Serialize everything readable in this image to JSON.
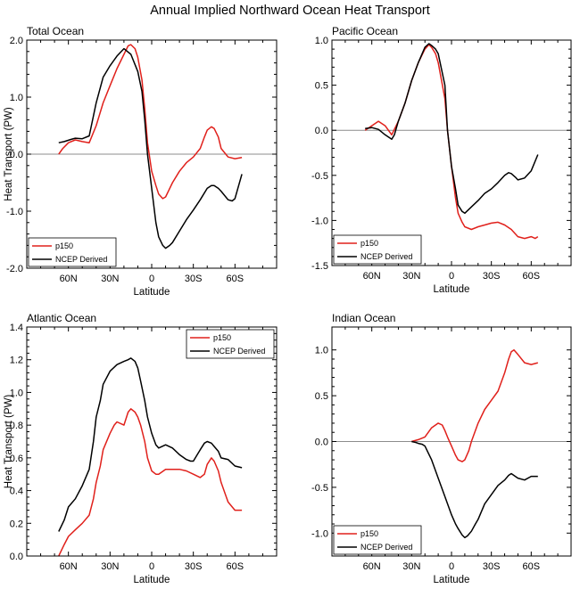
{
  "figure_title": "Annual Implied Northward Ocean Heat Transport",
  "colors": {
    "p150": "#e0201b",
    "ncep": "#000000",
    "zero_line": "#8c8c8c"
  },
  "chart_data": [
    {
      "type": "line",
      "panel_title": "Total Ocean",
      "xlabel": "Latitude",
      "ylabel": "Heat Transport (PW)",
      "xlim": [
        90,
        -90
      ],
      "x_ticks": [
        60,
        30,
        0,
        -30,
        -60
      ],
      "x_tick_labels": [
        "60N",
        "30N",
        "0",
        "30S",
        "60S"
      ],
      "ylim": [
        -2.0,
        2.0
      ],
      "y_ticks": [
        -2.0,
        -1.0,
        0.0,
        1.0,
        2.0
      ],
      "y_tick_labels": [
        "-2.0",
        "-1.0",
        "0.0",
        "1.0",
        "2.0"
      ],
      "zero_line": true,
      "legend": {
        "position": "bottom-left",
        "entries": [
          "p150",
          "NCEP Derived"
        ]
      },
      "series": [
        {
          "name": "p150",
          "color": "#e0201b",
          "x": [
            67,
            64,
            60,
            55,
            50,
            45,
            40,
            35,
            30,
            25,
            20,
            17,
            15,
            12,
            10,
            7,
            5,
            3,
            0,
            -3,
            -5,
            -8,
            -10,
            -13,
            -15,
            -20,
            -25,
            -30,
            -35,
            -38,
            -40,
            -43,
            -45,
            -48,
            -50,
            -55,
            -60,
            -65
          ],
          "y": [
            0.0,
            0.1,
            0.2,
            0.25,
            0.22,
            0.2,
            0.5,
            0.9,
            1.2,
            1.5,
            1.75,
            1.9,
            1.92,
            1.85,
            1.7,
            1.3,
            0.8,
            0.2,
            -0.3,
            -0.55,
            -0.7,
            -0.78,
            -0.75,
            -0.6,
            -0.5,
            -0.3,
            -0.15,
            -0.05,
            0.1,
            0.3,
            0.42,
            0.48,
            0.45,
            0.3,
            0.1,
            -0.05,
            -0.08,
            -0.06
          ]
        },
        {
          "name": "NCEP Derived",
          "color": "#000000",
          "x": [
            67,
            63,
            58,
            55,
            50,
            45,
            40,
            35,
            30,
            25,
            20,
            15,
            10,
            7,
            5,
            3,
            0,
            -3,
            -5,
            -8,
            -10,
            -13,
            -15,
            -20,
            -25,
            -30,
            -35,
            -40,
            -43,
            -45,
            -48,
            -50,
            -55,
            -58,
            -60,
            -65
          ],
          "y": [
            0.2,
            0.22,
            0.26,
            0.28,
            0.27,
            0.32,
            0.9,
            1.35,
            1.55,
            1.72,
            1.85,
            1.75,
            1.45,
            1.1,
            0.6,
            0.0,
            -0.6,
            -1.2,
            -1.45,
            -1.6,
            -1.65,
            -1.6,
            -1.55,
            -1.35,
            -1.15,
            -0.98,
            -0.8,
            -0.6,
            -0.55,
            -0.55,
            -0.6,
            -0.65,
            -0.8,
            -0.82,
            -0.78,
            -0.35
          ]
        }
      ]
    },
    {
      "type": "line",
      "panel_title": "Pacific Ocean",
      "xlabel": "Latitude",
      "ylabel": "",
      "xlim": [
        90,
        -90
      ],
      "x_ticks": [
        60,
        30,
        0,
        -30,
        -60
      ],
      "x_tick_labels": [
        "60N",
        "30N",
        "0",
        "30S",
        "60S"
      ],
      "ylim": [
        -1.5,
        1.0
      ],
      "y_ticks": [
        -1.5,
        -1.0,
        -0.5,
        0.0,
        0.5,
        1.0
      ],
      "y_tick_labels": [
        "-1.5",
        "-1.0",
        "-0.5",
        "0.0",
        "0.5",
        "1.0"
      ],
      "zero_line": true,
      "legend": {
        "position": "bottom-left",
        "entries": [
          "p150",
          "NCEP Derived"
        ]
      },
      "series": [
        {
          "name": "p150",
          "color": "#e0201b",
          "x": [
            65,
            60,
            55,
            50,
            45,
            40,
            35,
            30,
            25,
            20,
            17,
            15,
            12,
            10,
            5,
            3,
            0,
            -3,
            -5,
            -8,
            -10,
            -15,
            -20,
            -25,
            -30,
            -35,
            -40,
            -45,
            -50,
            -55,
            -60,
            -63,
            -65
          ],
          "y": [
            0.0,
            0.05,
            0.1,
            0.05,
            -0.05,
            0.1,
            0.3,
            0.55,
            0.75,
            0.9,
            0.95,
            0.92,
            0.85,
            0.75,
            0.35,
            0.0,
            -0.4,
            -0.75,
            -0.92,
            -1.02,
            -1.07,
            -1.1,
            -1.07,
            -1.05,
            -1.03,
            -1.02,
            -1.05,
            -1.1,
            -1.18,
            -1.2,
            -1.18,
            -1.2,
            -1.18
          ]
        },
        {
          "name": "NCEP Derived",
          "color": "#000000",
          "x": [
            65,
            60,
            55,
            50,
            45,
            43,
            40,
            35,
            30,
            25,
            20,
            17,
            15,
            12,
            10,
            5,
            3,
            0,
            -3,
            -5,
            -8,
            -10,
            -15,
            -20,
            -25,
            -30,
            -35,
            -40,
            -43,
            -45,
            -48,
            -50,
            -55,
            -60,
            -65
          ],
          "y": [
            0.02,
            0.03,
            0.01,
            -0.05,
            -0.1,
            -0.05,
            0.1,
            0.3,
            0.55,
            0.75,
            0.92,
            0.96,
            0.94,
            0.9,
            0.85,
            0.5,
            0.0,
            -0.4,
            -0.65,
            -0.83,
            -0.9,
            -0.92,
            -0.85,
            -0.78,
            -0.7,
            -0.65,
            -0.58,
            -0.5,
            -0.47,
            -0.48,
            -0.52,
            -0.55,
            -0.53,
            -0.45,
            -0.27
          ]
        }
      ]
    },
    {
      "type": "line",
      "panel_title": "Atlantic Ocean",
      "xlabel": "Latitude",
      "ylabel": "Heat Transport (PW)",
      "xlim": [
        90,
        -90
      ],
      "x_ticks": [
        60,
        30,
        0,
        -30,
        -60
      ],
      "x_tick_labels": [
        "60N",
        "30N",
        "0",
        "30S",
        "60S"
      ],
      "ylim": [
        0.0,
        1.4
      ],
      "y_ticks": [
        0.0,
        0.2,
        0.4,
        0.6,
        0.8,
        1.0,
        1.2,
        1.4
      ],
      "y_tick_labels": [
        "0.0",
        "0.2",
        "0.4",
        "0.6",
        "0.8",
        "1.0",
        "1.2",
        "1.4"
      ],
      "zero_line": false,
      "legend": {
        "position": "top-right",
        "entries": [
          "p150",
          "NCEP Derived"
        ]
      },
      "series": [
        {
          "name": "p150",
          "color": "#e0201b",
          "x": [
            67,
            63,
            60,
            55,
            50,
            45,
            42,
            40,
            37,
            35,
            30,
            27,
            25,
            20,
            17,
            15,
            12,
            10,
            8,
            5,
            3,
            0,
            -3,
            -5,
            -10,
            -15,
            -20,
            -25,
            -30,
            -35,
            -38,
            -40,
            -43,
            -45,
            -48,
            -50,
            -55,
            -60,
            -65
          ],
          "y": [
            0.0,
            0.07,
            0.12,
            0.16,
            0.2,
            0.25,
            0.35,
            0.45,
            0.55,
            0.65,
            0.75,
            0.8,
            0.82,
            0.8,
            0.88,
            0.9,
            0.88,
            0.85,
            0.8,
            0.7,
            0.6,
            0.52,
            0.5,
            0.5,
            0.53,
            0.53,
            0.53,
            0.52,
            0.5,
            0.48,
            0.5,
            0.56,
            0.6,
            0.58,
            0.52,
            0.45,
            0.33,
            0.28,
            0.28
          ]
        },
        {
          "name": "NCEP Derived",
          "color": "#000000",
          "x": [
            67,
            63,
            60,
            55,
            50,
            45,
            42,
            40,
            37,
            35,
            30,
            25,
            20,
            17,
            15,
            12,
            10,
            8,
            5,
            3,
            0,
            -3,
            -5,
            -10,
            -15,
            -20,
            -25,
            -28,
            -30,
            -35,
            -38,
            -40,
            -43,
            -45,
            -48,
            -50,
            -55,
            -60,
            -65
          ],
          "y": [
            0.15,
            0.22,
            0.3,
            0.35,
            0.43,
            0.53,
            0.7,
            0.85,
            0.95,
            1.05,
            1.13,
            1.17,
            1.19,
            1.2,
            1.21,
            1.19,
            1.15,
            1.07,
            0.95,
            0.85,
            0.75,
            0.68,
            0.66,
            0.68,
            0.66,
            0.62,
            0.59,
            0.58,
            0.58,
            0.65,
            0.69,
            0.7,
            0.69,
            0.67,
            0.64,
            0.6,
            0.59,
            0.55,
            0.54
          ]
        }
      ]
    },
    {
      "type": "line",
      "panel_title": "Indian Ocean",
      "xlabel": "Latitude",
      "ylabel": "",
      "xlim": [
        90,
        -90
      ],
      "x_ticks": [
        60,
        30,
        0,
        -30,
        -60
      ],
      "x_tick_labels": [
        "60N",
        "30N",
        "0",
        "30S",
        "60S"
      ],
      "ylim": [
        -1.25,
        1.25
      ],
      "y_ticks": [
        -1.0,
        -0.5,
        0.0,
        0.5,
        1.0
      ],
      "y_tick_labels": [
        "-1.0",
        "-0.5",
        "0.0",
        "0.5",
        "1.0"
      ],
      "zero_line": true,
      "legend": {
        "position": "bottom-left",
        "entries": [
          "p150",
          "NCEP Derived"
        ]
      },
      "series": [
        {
          "name": "p150",
          "color": "#e0201b",
          "x": [
            30,
            25,
            20,
            15,
            10,
            7,
            5,
            3,
            0,
            -3,
            -5,
            -8,
            -10,
            -13,
            -15,
            -20,
            -25,
            -30,
            -35,
            -40,
            -43,
            -45,
            -47,
            -50,
            -55,
            -60,
            -65
          ],
          "y": [
            0.0,
            0.02,
            0.05,
            0.15,
            0.2,
            0.18,
            0.12,
            0.05,
            -0.05,
            -0.15,
            -0.2,
            -0.22,
            -0.2,
            -0.1,
            0.0,
            0.2,
            0.35,
            0.45,
            0.55,
            0.75,
            0.9,
            0.98,
            1.0,
            0.95,
            0.86,
            0.84,
            0.86
          ]
        },
        {
          "name": "NCEP Derived",
          "color": "#000000",
          "x": [
            30,
            27,
            25,
            22,
            20,
            15,
            10,
            5,
            0,
            -3,
            -5,
            -8,
            -10,
            -12,
            -15,
            -18,
            -20,
            -25,
            -30,
            -35,
            -40,
            -43,
            -45,
            -48,
            -50,
            -55,
            -60,
            -65
          ],
          "y": [
            0.0,
            -0.01,
            -0.02,
            -0.03,
            -0.05,
            -0.2,
            -0.4,
            -0.6,
            -0.8,
            -0.9,
            -0.95,
            -1.02,
            -1.05,
            -1.03,
            -0.98,
            -0.9,
            -0.85,
            -0.68,
            -0.58,
            -0.48,
            -0.42,
            -0.37,
            -0.35,
            -0.38,
            -0.4,
            -0.42,
            -0.38,
            -0.38
          ]
        }
      ]
    }
  ]
}
